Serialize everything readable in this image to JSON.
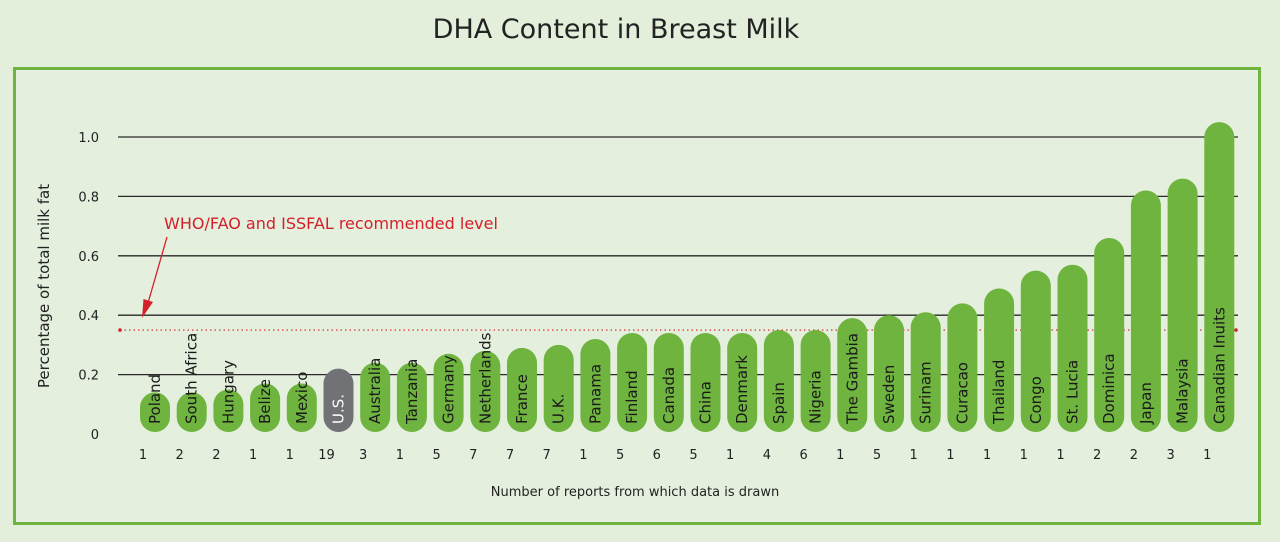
{
  "chart_data": {
    "type": "bar",
    "title": "DHA Content in Breast Milk",
    "ylabel": "Percentage of total milk fat",
    "xlabel": "Number of reports from which data is drawn",
    "ylim": [
      0,
      1.0
    ],
    "yticks": [
      "0",
      "0.2",
      "0.4",
      "0.6",
      "0.8",
      "1.0"
    ],
    "ytick_values": [
      0,
      0.2,
      0.4,
      0.6,
      0.8,
      1.0
    ],
    "grid": true,
    "reference_line": {
      "value": 0.35,
      "label": "WHO/FAO and ISSFAL recommended level",
      "color": "#d4202a"
    },
    "categories": [
      "Poland",
      "South Africa",
      "Hungary",
      "Belize",
      "Mexico",
      "U.S.",
      "Australia",
      "Tanzania",
      "Germany",
      "Netherlands",
      "France",
      "U.K.",
      "Panama",
      "Finland",
      "Canada",
      "China",
      "Denmark",
      "Spain",
      "Nigeria",
      "The Gambia",
      "Sweden",
      "Surinam",
      "Curacao",
      "Thailand",
      "Congo",
      "St. Lucia",
      "Dominica",
      "Japan",
      "Malaysia",
      "Canadian Inuits"
    ],
    "values": [
      0.14,
      0.14,
      0.15,
      0.17,
      0.17,
      0.22,
      0.24,
      0.24,
      0.27,
      0.28,
      0.29,
      0.3,
      0.32,
      0.34,
      0.34,
      0.34,
      0.34,
      0.35,
      0.35,
      0.39,
      0.4,
      0.41,
      0.44,
      0.49,
      0.55,
      0.57,
      0.66,
      0.82,
      0.86,
      1.05
    ],
    "report_counts": [
      "1",
      "2",
      "2",
      "1",
      "1",
      "19",
      "3",
      "1",
      "5",
      "7",
      "7",
      "7",
      "1",
      "5",
      "6",
      "5",
      "1",
      "4",
      "6",
      "1",
      "5",
      "1",
      "1",
      "1",
      "1",
      "1",
      "2",
      "2",
      "3",
      "1"
    ],
    "colors": {
      "default": "#6fb43f",
      "highlight": "#707276",
      "highlight_category": "U.S.",
      "grid": "#2a2a2a",
      "frame": "#6fb43f",
      "reference": "#d4202a",
      "bar_label": "#1a1a1a",
      "highlight_label": "#ffffff"
    }
  }
}
